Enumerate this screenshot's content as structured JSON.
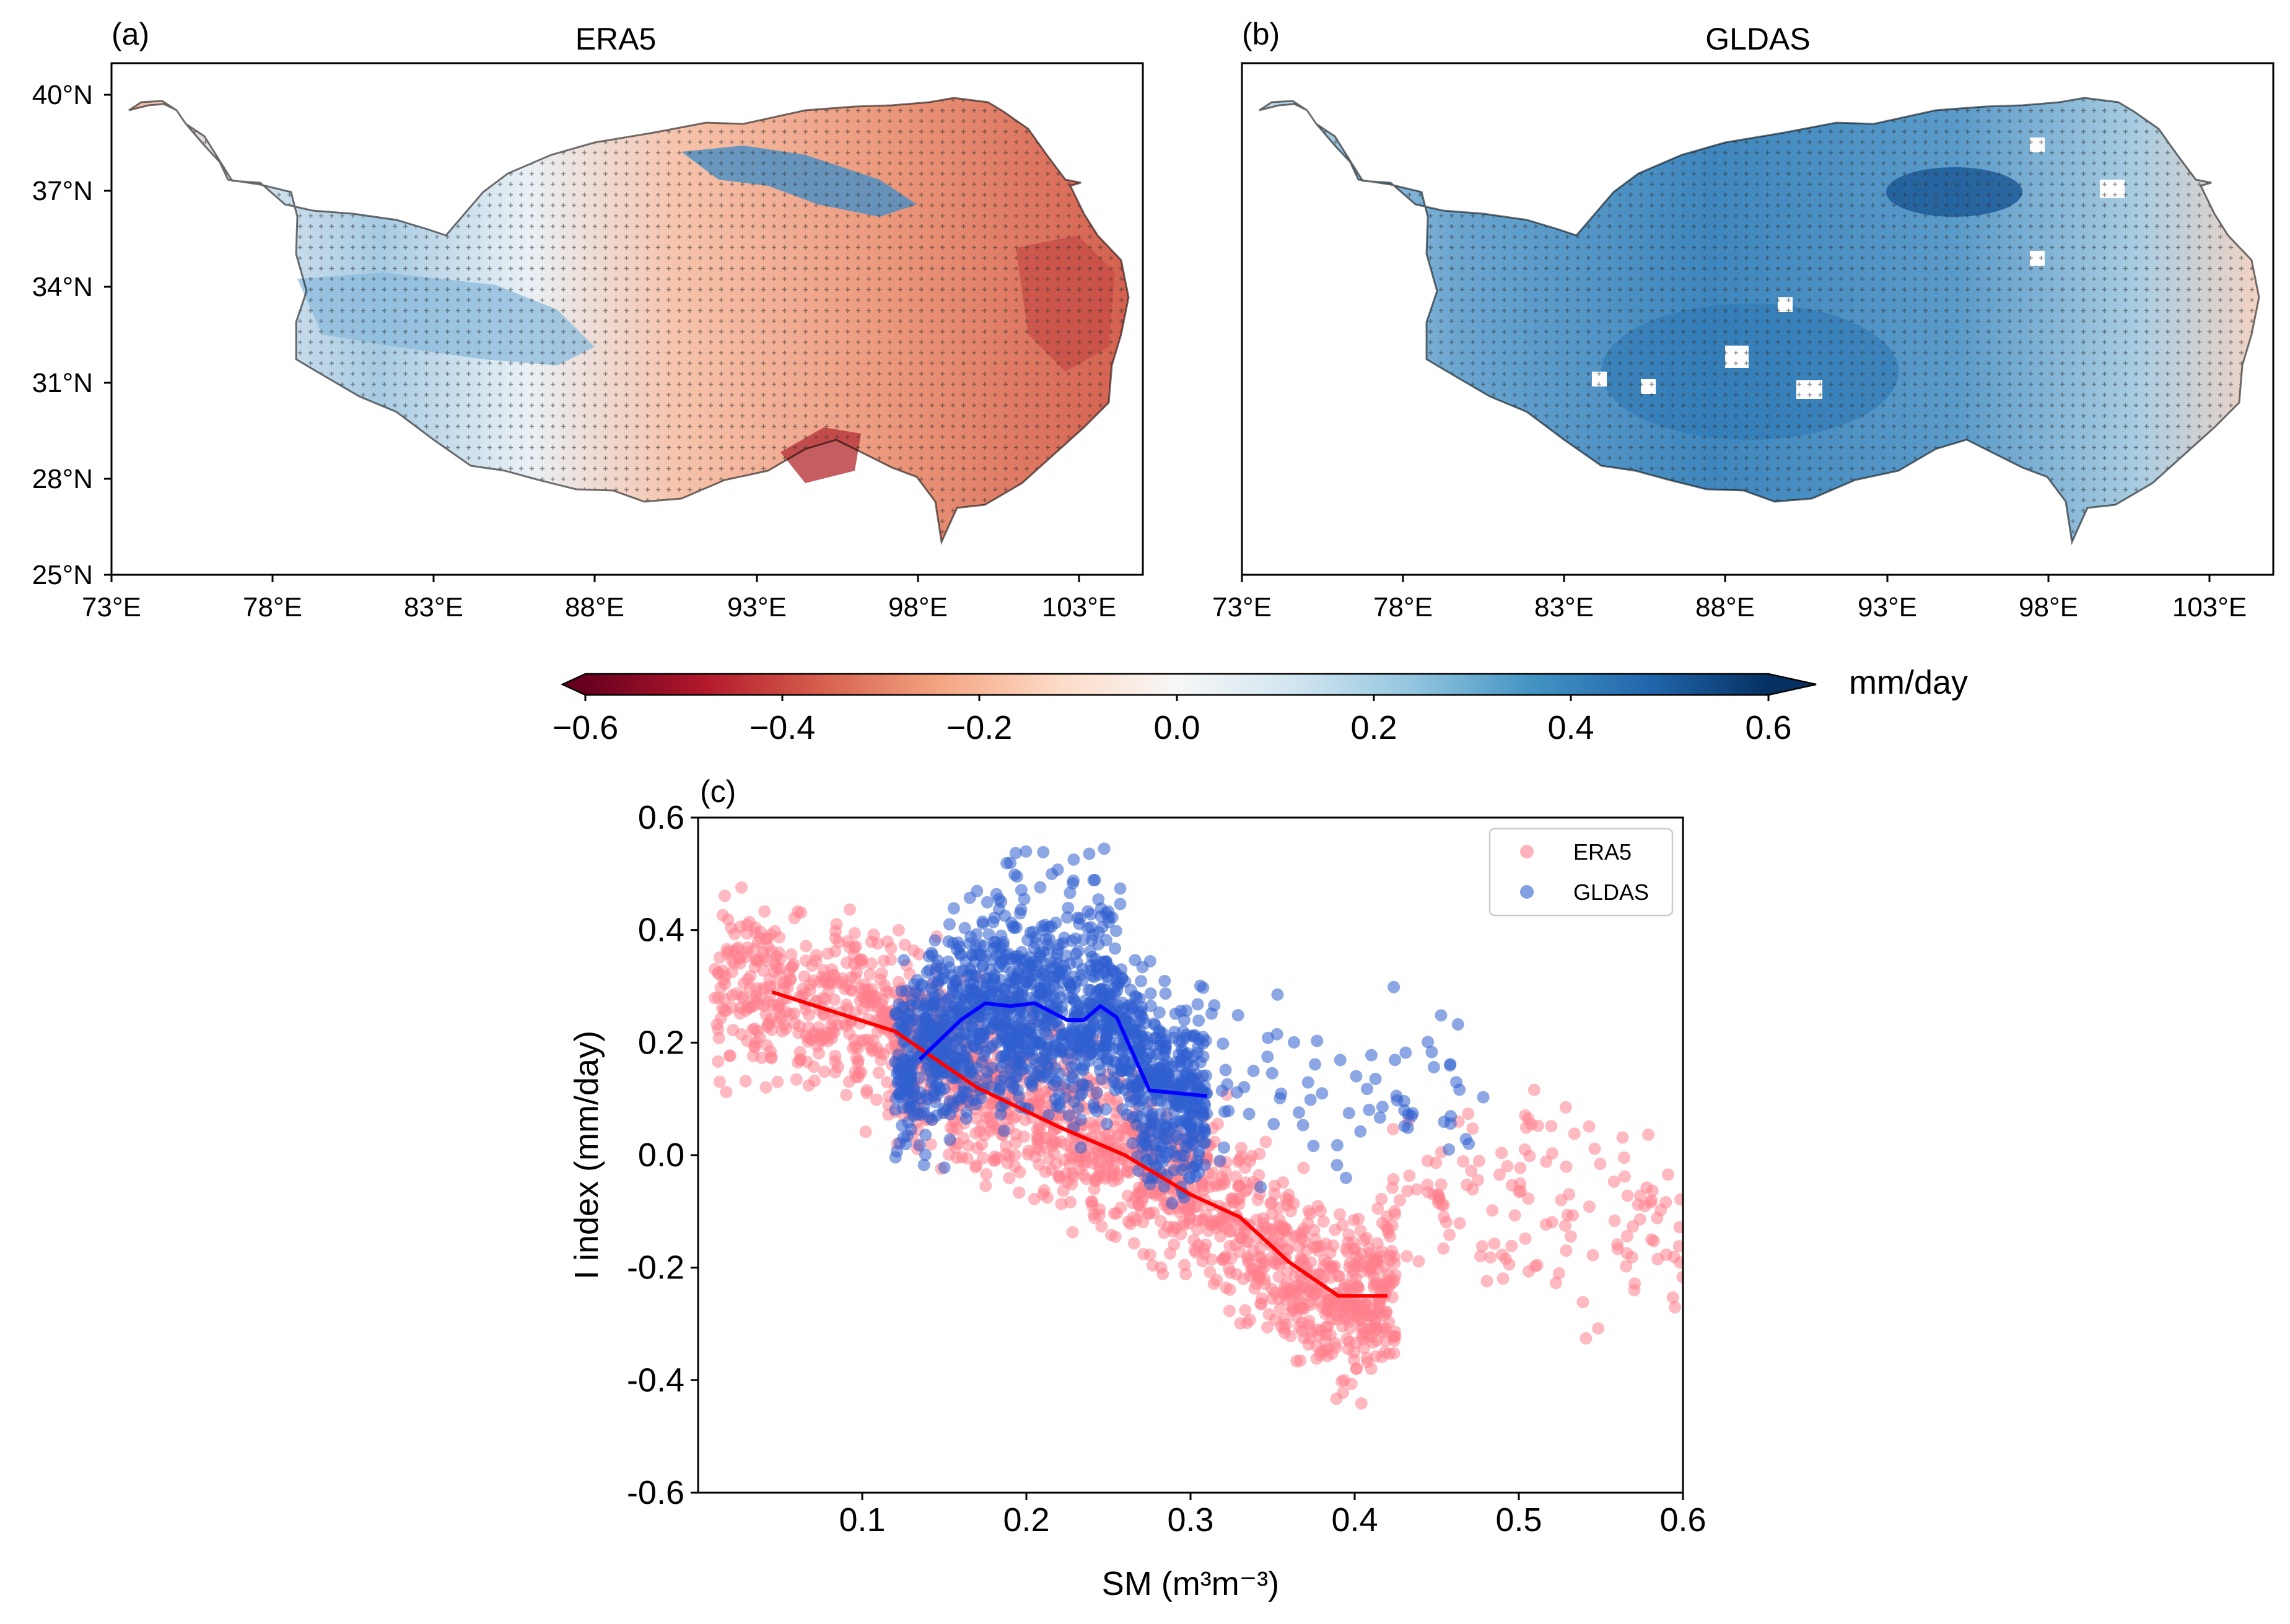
{
  "panel_a": {
    "label": "(a)",
    "title": "ERA5",
    "lat_ticks": [
      "40°N",
      "37°N",
      "34°N",
      "31°N",
      "28°N",
      "25°N"
    ],
    "lon_ticks": [
      "73°E",
      "78°E",
      "83°E",
      "88°E",
      "93°E",
      "98°E",
      "103°E"
    ]
  },
  "panel_b": {
    "label": "(b)",
    "title": "GLDAS",
    "lon_ticks": [
      "73°E",
      "78°E",
      "83°E",
      "88°E",
      "93°E",
      "98°E",
      "103°E"
    ]
  },
  "colorbar": {
    "unit": "mm/day",
    "ticks": [
      "−0.6",
      "−0.4",
      "−0.2",
      "0.0",
      "0.2",
      "0.4",
      "0.6"
    ],
    "colors": [
      "#67001f",
      "#b2182b",
      "#d6604d",
      "#f4a582",
      "#fddbc7",
      "#f7f7f7",
      "#d1e5f0",
      "#92c5de",
      "#4393c3",
      "#2166ac",
      "#053061"
    ]
  },
  "chart_data": {
    "type": "scatter",
    "panel_label": "(c)",
    "xlabel": "SM (m³m⁻³)",
    "ylabel": "I index (mm/day)",
    "xlim": [
      0.0,
      0.6
    ],
    "ylim": [
      -0.6,
      0.6
    ],
    "x_ticks": [
      "0.1",
      "0.2",
      "0.3",
      "0.4",
      "0.5",
      "0.6"
    ],
    "y_ticks": [
      "0.6",
      "0.4",
      "0.2",
      "0.0",
      "-0.2",
      "-0.4",
      "-0.6"
    ],
    "legend": {
      "placement": "upper-right",
      "entries": [
        "ERA5",
        "GLDAS"
      ]
    },
    "series": [
      {
        "name": "ERA5",
        "color": "#ff7f8c",
        "trend": [
          [
            0.045,
            0.29
          ],
          [
            0.12,
            0.22
          ],
          [
            0.17,
            0.12
          ],
          [
            0.22,
            0.05
          ],
          [
            0.26,
            0.0
          ],
          [
            0.3,
            -0.07
          ],
          [
            0.33,
            -0.11
          ],
          [
            0.36,
            -0.19
          ],
          [
            0.39,
            -0.25
          ],
          [
            0.42,
            -0.25
          ]
        ]
      },
      {
        "name": "GLDAS",
        "color": "#2f5fd0",
        "trend": [
          [
            0.135,
            0.17
          ],
          [
            0.16,
            0.24
          ],
          [
            0.175,
            0.27
          ],
          [
            0.19,
            0.265
          ],
          [
            0.205,
            0.27
          ],
          [
            0.215,
            0.255
          ],
          [
            0.225,
            0.24
          ],
          [
            0.235,
            0.24
          ],
          [
            0.245,
            0.265
          ],
          [
            0.255,
            0.245
          ],
          [
            0.265,
            0.18
          ],
          [
            0.275,
            0.115
          ],
          [
            0.31,
            0.105
          ]
        ]
      }
    ]
  }
}
